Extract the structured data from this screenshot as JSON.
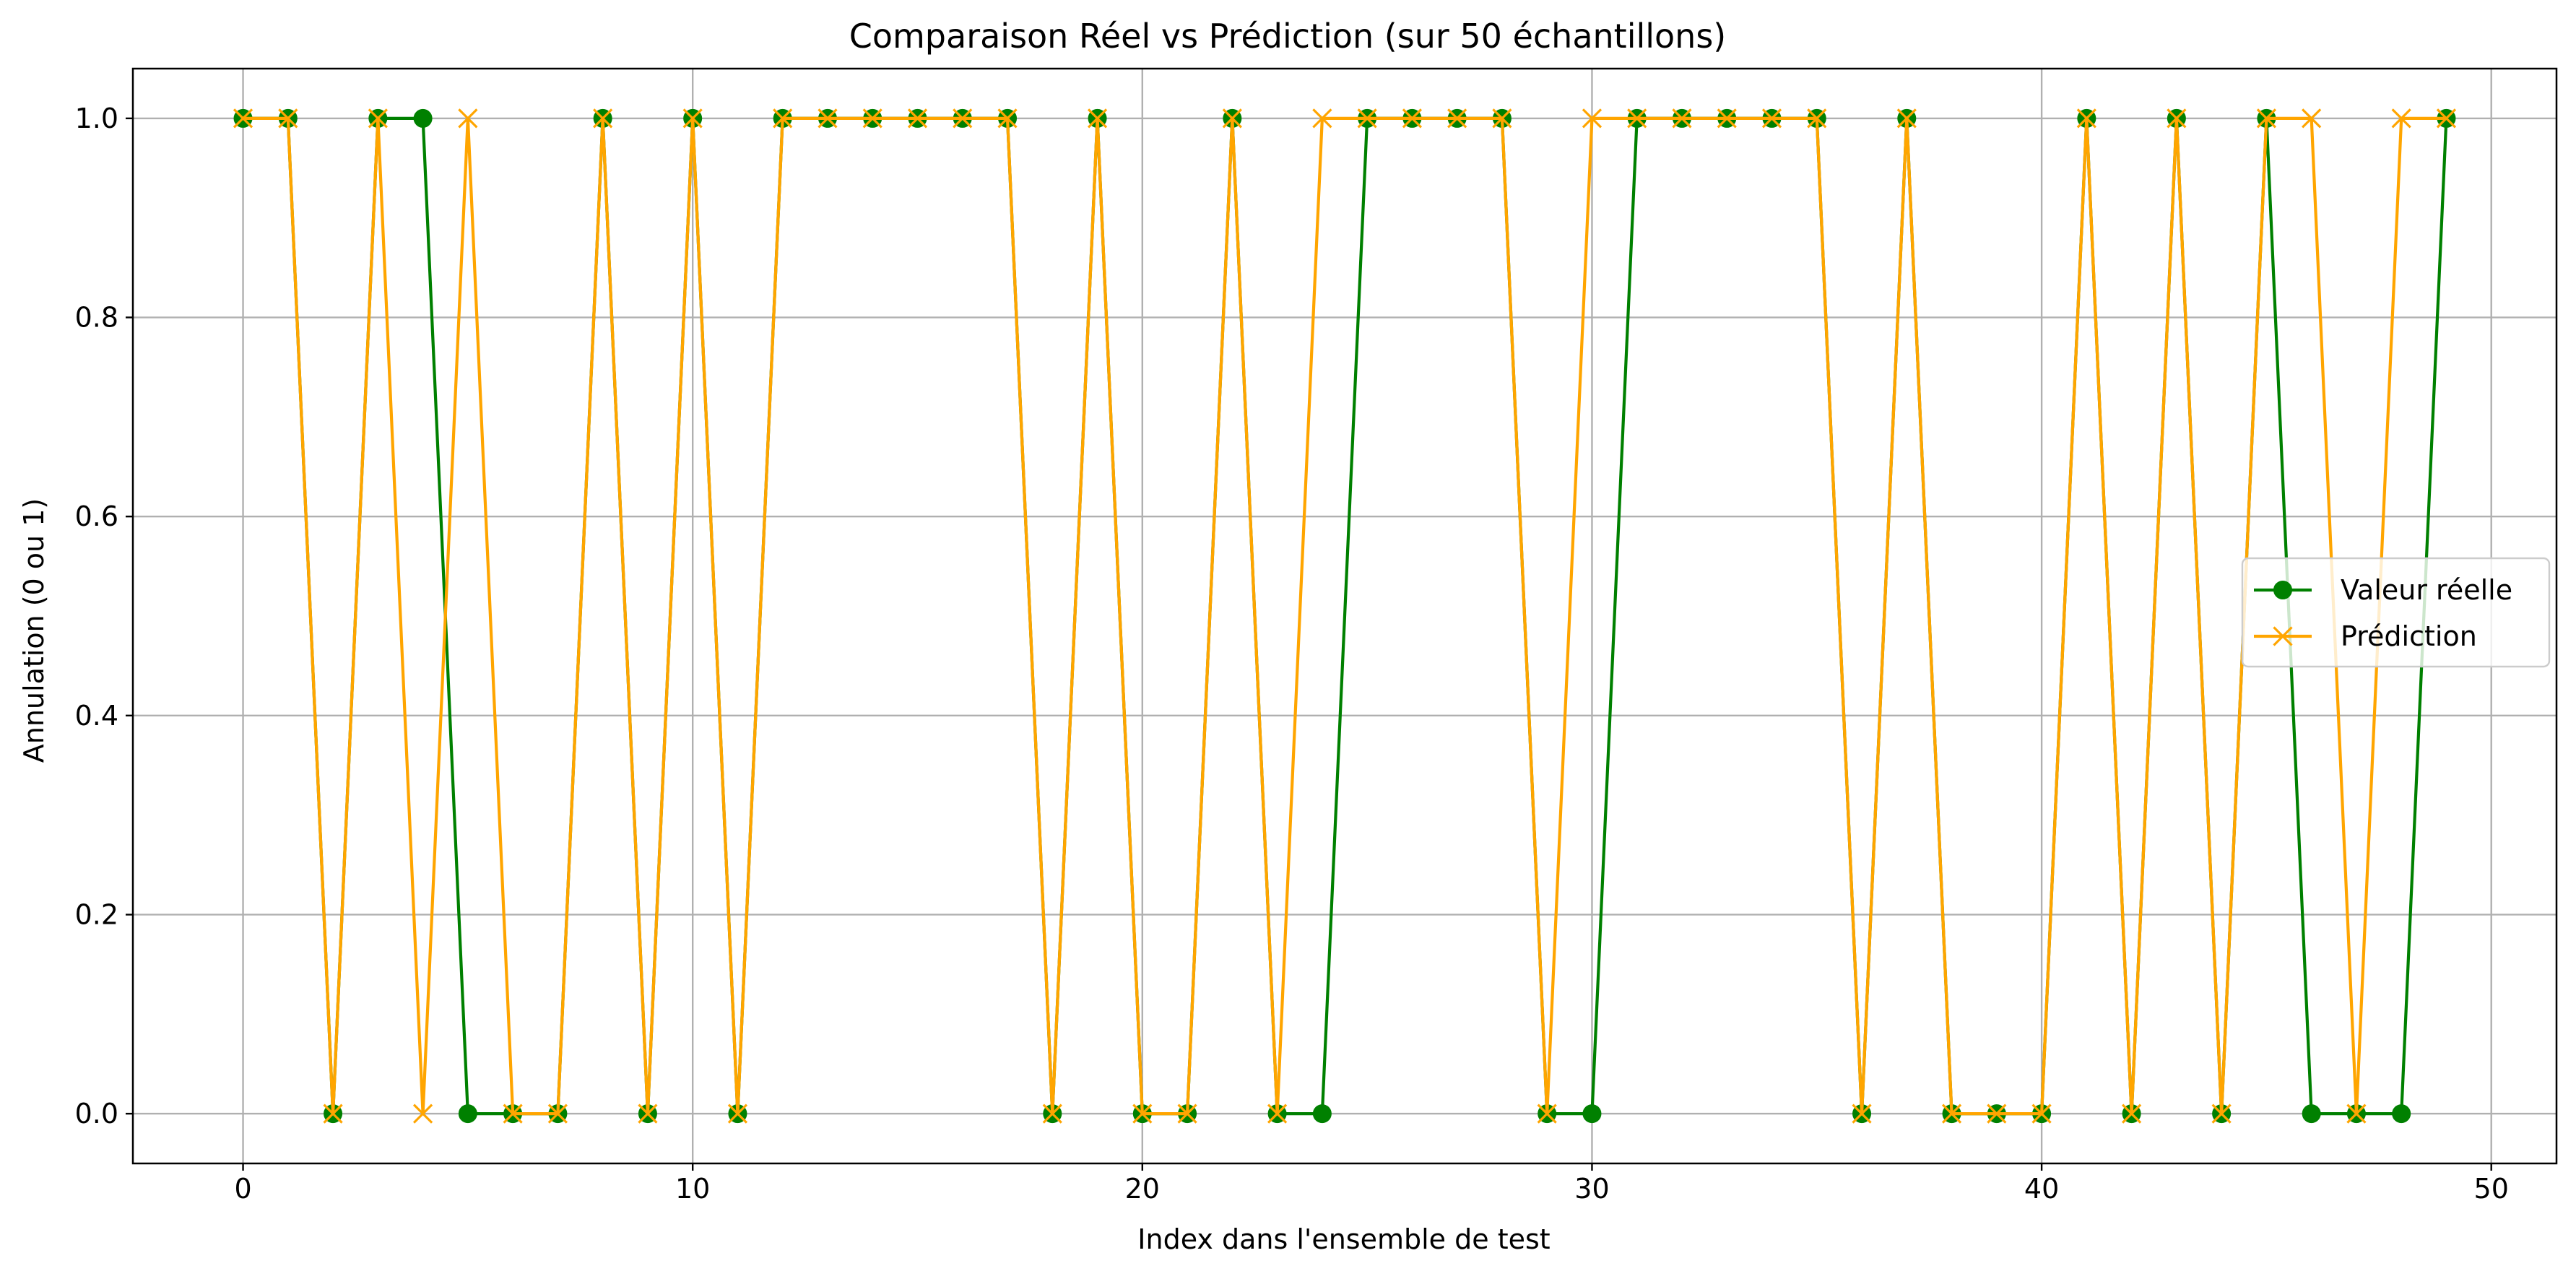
{
  "chart_data": {
    "type": "line",
    "title": "Comparaison Réel vs Prédiction (sur 50 échantillons)",
    "xlabel": "Index dans l'ensemble de test",
    "ylabel": "Annulation (0 ou 1)",
    "xlim": [
      -2.45,
      51.45
    ],
    "ylim": [
      -0.05,
      1.05
    ],
    "xticks": [
      0,
      10,
      20,
      30,
      40,
      50
    ],
    "yticks": [
      0.0,
      0.2,
      0.4,
      0.6,
      0.8,
      1.0
    ],
    "xtick_labels": [
      "0",
      "10",
      "20",
      "30",
      "40",
      "50"
    ],
    "ytick_labels": [
      "0.0",
      "0.2",
      "0.4",
      "0.6",
      "0.8",
      "1.0"
    ],
    "grid": true,
    "legend_position": "center-right",
    "x": [
      0,
      1,
      2,
      3,
      4,
      5,
      6,
      7,
      8,
      9,
      10,
      11,
      12,
      13,
      14,
      15,
      16,
      17,
      18,
      19,
      20,
      21,
      22,
      23,
      24,
      25,
      26,
      27,
      28,
      29,
      30,
      31,
      32,
      33,
      34,
      35,
      36,
      37,
      38,
      39,
      40,
      41,
      42,
      43,
      44,
      45,
      46,
      47,
      48,
      49
    ],
    "series": [
      {
        "name": "Valeur réelle",
        "color": "#008000",
        "marker": "circle",
        "values": [
          1,
          1,
          0,
          1,
          1,
          0,
          0,
          0,
          1,
          0,
          1,
          0,
          1,
          1,
          1,
          1,
          1,
          1,
          0,
          1,
          0,
          0,
          1,
          0,
          0,
          1,
          1,
          1,
          1,
          0,
          0,
          1,
          1,
          1,
          1,
          1,
          0,
          1,
          0,
          0,
          0,
          1,
          0,
          1,
          0,
          1,
          0,
          0,
          0,
          1
        ]
      },
      {
        "name": "Prédiction",
        "color": "#FFA500",
        "marker": "x",
        "values": [
          1,
          1,
          0,
          1,
          0,
          1,
          0,
          0,
          1,
          0,
          1,
          0,
          1,
          1,
          1,
          1,
          1,
          1,
          0,
          1,
          0,
          0,
          1,
          0,
          1,
          1,
          1,
          1,
          1,
          0,
          1,
          1,
          1,
          1,
          1,
          1,
          0,
          1,
          0,
          0,
          0,
          1,
          0,
          1,
          0,
          1,
          1,
          0,
          1,
          1
        ]
      }
    ]
  }
}
